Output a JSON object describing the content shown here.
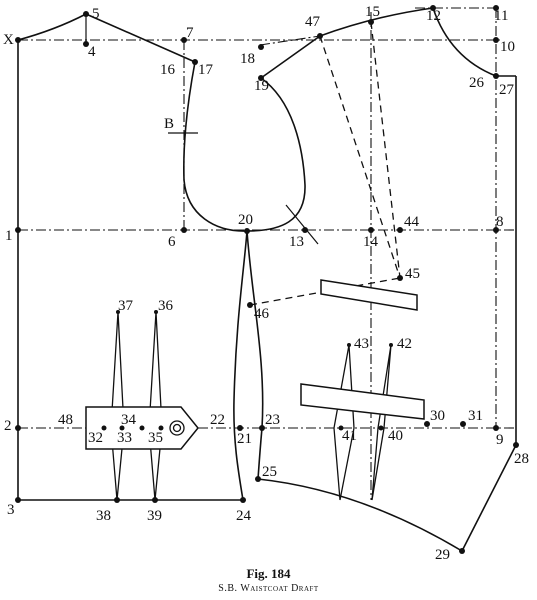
{
  "figure": {
    "number_label": "Fig. 184",
    "title": "S.B. Waistcoat Draft"
  },
  "points": {
    "x": "X",
    "p1": "1",
    "p2": "2",
    "p3": "3",
    "p4": "4",
    "p5": "5",
    "p6": "6",
    "p7": "7",
    "p8": "8",
    "p9": "9",
    "p10": "10",
    "p11": "11",
    "p12": "12",
    "p13": "13",
    "p14": "14",
    "p15": "15",
    "p16": "16",
    "p17": "17",
    "p18": "18",
    "p19": "19",
    "p20": "20",
    "p21": "21",
    "p22": "22",
    "p23": "23",
    "p24": "24",
    "p25": "25",
    "p26": "26",
    "p27": "27",
    "p28": "28",
    "p29": "29",
    "p30": "30",
    "p31": "31",
    "p32": "32",
    "p33": "33",
    "p34": "34",
    "p35": "35",
    "p36": "36",
    "p37": "37",
    "p38": "38",
    "p39": "39",
    "p40": "40",
    "p41": "41",
    "p42": "42",
    "p43": "43",
    "p44": "44",
    "p45": "45",
    "p46": "46",
    "p47": "47",
    "p48": "48",
    "b": "B"
  }
}
